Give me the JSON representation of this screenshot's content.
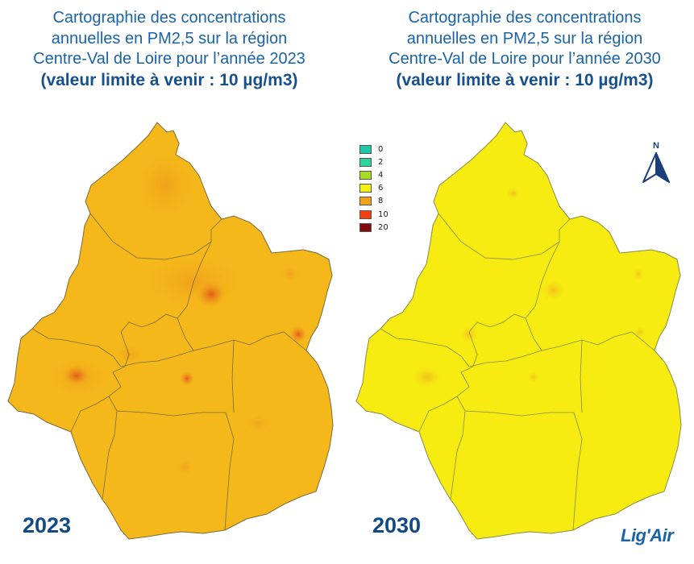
{
  "left_panel": {
    "title_lines": [
      "Cartographie des concentrations",
      "annuelles en PM2,5 sur la région",
      "Centre-Val de Loire pour l’année 2023"
    ],
    "limit_open": "(",
    "limit_text": "valeur limite à venir : 10 µg/m3",
    "limit_close": ")",
    "year": "2023",
    "fill_color": "#f5b81a",
    "border_color": "#7a6a3a"
  },
  "right_panel": {
    "title_lines": [
      "Cartographie des concentrations",
      "annuelles en PM2,5 sur la région",
      "Centre-Val de Loire pour l’année 2030"
    ],
    "limit_open": "(",
    "limit_text": "valeur limite à venir : 10 µg/m3",
    "limit_close": ")",
    "year": "2030",
    "fill_color": "#f6ec12",
    "border_color": "#8a8a4a"
  },
  "legend": [
    {
      "label": "0",
      "color": "#1dc9a8"
    },
    {
      "label": "2",
      "color": "#2ed3a0"
    },
    {
      "label": "4",
      "color": "#a6dc23"
    },
    {
      "label": "6",
      "color": "#f6f20f"
    },
    {
      "label": "8",
      "color": "#f1a31a"
    },
    {
      "label": "10",
      "color": "#f4400f"
    },
    {
      "label": "20",
      "color": "#7f0d0d"
    }
  ],
  "north_arrow": {
    "label": "N",
    "icon": "north-arrow-icon"
  },
  "logo": {
    "text": "Lig'Air",
    "icon": "ligair-logo"
  },
  "colors": {
    "title": "#1a63a6",
    "year": "#124a86",
    "hotspot_2023": "#e8691c",
    "hotspot_2030": "#f1b41a"
  }
}
